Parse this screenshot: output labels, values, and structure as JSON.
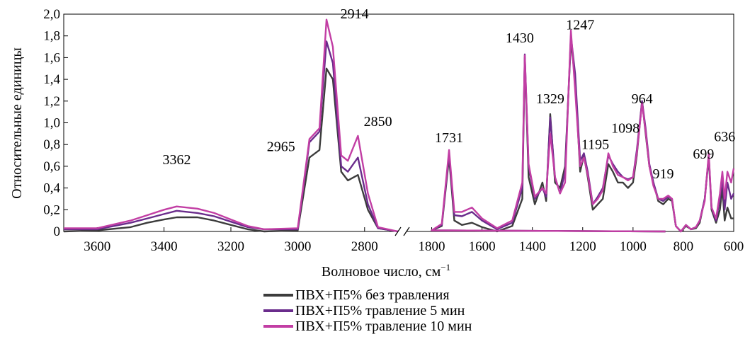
{
  "chart_data": {
    "type": "line",
    "title": "",
    "xlabel": "Волновое число, см",
    "xlabel_sup": "−1",
    "ylabel": "Относительные единицы",
    "x_reversed": true,
    "x_broken": true,
    "x_segments": [
      [
        3700,
        2700
      ],
      [
        1900,
        600
      ]
    ],
    "ylim": [
      0,
      2.0
    ],
    "y_ticks": [
      "0",
      "0,2",
      "0,4",
      "0,6",
      "0,8",
      "1,0",
      "1,2",
      "1,4",
      "1,6",
      "1,8",
      "2,0"
    ],
    "x_ticks": [
      {
        "value": 3600,
        "label": "3600"
      },
      {
        "value": 3400,
        "label": "3400"
      },
      {
        "value": 3200,
        "label": "3200"
      },
      {
        "value": 3000,
        "label": "3000"
      },
      {
        "value": 2800,
        "label": "2800"
      },
      {
        "value": 1800,
        "label": "1800"
      },
      {
        "value": 1600,
        "label": "1600"
      },
      {
        "value": 1400,
        "label": "1400"
      },
      {
        "value": 1200,
        "label": "1200"
      },
      {
        "value": 1000,
        "label": "1000"
      },
      {
        "value": 800,
        "label": "800"
      },
      {
        "value": 600,
        "label": "600"
      }
    ],
    "grid": false,
    "legend_position": "bottom-center",
    "annotations": [
      {
        "label": "3362",
        "x": 3362,
        "y": 0.62
      },
      {
        "label": "2965",
        "x": 3050,
        "y": 0.74
      },
      {
        "label": "2914",
        "x": 2830,
        "y": 1.96
      },
      {
        "label": "2850",
        "x": 2760,
        "y": 0.97
      },
      {
        "label": "1731",
        "x": 1731,
        "y": 0.82
      },
      {
        "label": "1430",
        "x": 1450,
        "y": 1.74
      },
      {
        "label": "1329",
        "x": 1329,
        "y": 1.18
      },
      {
        "label": "1247",
        "x": 1210,
        "y": 1.86
      },
      {
        "label": "1195",
        "x": 1150,
        "y": 0.76
      },
      {
        "label": "964",
        "x": 964,
        "y": 1.18
      },
      {
        "label": "1098",
        "x": 1030,
        "y": 0.91
      },
      {
        "label": "919",
        "x": 880,
        "y": 0.49
      },
      {
        "label": "699",
        "x": 720,
        "y": 0.67
      },
      {
        "label": "636",
        "x": 636,
        "y": 0.83
      }
    ],
    "series": [
      {
        "name": "ПВХ+П5% без травления",
        "color": "#3c3c3c",
        "segments": [
          [
            [
              3700,
              0
            ],
            [
              3600,
              0.01
            ],
            [
              3500,
              0.04
            ],
            [
              3450,
              0.08
            ],
            [
              3400,
              0.11
            ],
            [
              3362,
              0.13
            ],
            [
              3300,
              0.13
            ],
            [
              3250,
              0.1
            ],
            [
              3200,
              0.06
            ],
            [
              3150,
              0.02
            ],
            [
              3100,
              0
            ],
            [
              3000,
              0.01
            ],
            [
              2965,
              0.68
            ],
            [
              2935,
              0.75
            ],
            [
              2914,
              1.5
            ],
            [
              2895,
              1.4
            ],
            [
              2870,
              0.55
            ],
            [
              2850,
              0.47
            ],
            [
              2820,
              0.52
            ],
            [
              2790,
              0.2
            ],
            [
              2760,
              0.03
            ],
            [
              2700,
              0
            ]
          ],
          [
            [
              1900,
              0
            ],
            [
              1800,
              0.01
            ],
            [
              1760,
              0.05
            ],
            [
              1731,
              0.68
            ],
            [
              1710,
              0.1
            ],
            [
              1680,
              0.06
            ],
            [
              1640,
              0.08
            ],
            [
              1600,
              0.04
            ],
            [
              1540,
              0
            ],
            [
              1480,
              0.05
            ],
            [
              1440,
              0.3
            ],
            [
              1430,
              1.6
            ],
            [
              1415,
              0.5
            ],
            [
              1390,
              0.25
            ],
            [
              1360,
              0.45
            ],
            [
              1345,
              0.28
            ],
            [
              1329,
              1.08
            ],
            [
              1310,
              0.45
            ],
            [
              1290,
              0.4
            ],
            [
              1270,
              0.6
            ],
            [
              1247,
              1.75
            ],
            [
              1230,
              1.4
            ],
            [
              1210,
              0.55
            ],
            [
              1195,
              0.7
            ],
            [
              1180,
              0.5
            ],
            [
              1160,
              0.2
            ],
            [
              1140,
              0.25
            ],
            [
              1120,
              0.3
            ],
            [
              1098,
              0.62
            ],
            [
              1080,
              0.55
            ],
            [
              1060,
              0.45
            ],
            [
              1040,
              0.45
            ],
            [
              1020,
              0.4
            ],
            [
              1000,
              0.45
            ],
            [
              985,
              0.7
            ],
            [
              964,
              1.2
            ],
            [
              950,
              0.9
            ],
            [
              935,
              0.6
            ],
            [
              919,
              0.45
            ],
            [
              900,
              0.28
            ],
            [
              880,
              0.25
            ],
            [
              860,
              0.3
            ],
            [
              845,
              0.28
            ],
            [
              830,
              0.05
            ],
            [
              810,
              0
            ],
            [
              790,
              0.05
            ],
            [
              770,
              0.02
            ],
            [
              750,
              0.03
            ],
            [
              735,
              0.08
            ],
            [
              715,
              0.3
            ],
            [
              699,
              0.68
            ],
            [
              688,
              0.2
            ],
            [
              670,
              0.08
            ],
            [
              655,
              0.2
            ],
            [
              645,
              0.4
            ],
            [
              636,
              0.1
            ],
            [
              625,
              0.22
            ],
            [
              610,
              0.12
            ],
            [
              600,
              0.12
            ]
          ]
        ]
      },
      {
        "name": "ПВХ+П5% травление 5 мин",
        "color": "#6a2c8c",
        "segments": [
          [
            [
              3700,
              0.02
            ],
            [
              3600,
              0.02
            ],
            [
              3500,
              0.08
            ],
            [
              3450,
              0.12
            ],
            [
              3400,
              0.16
            ],
            [
              3362,
              0.19
            ],
            [
              3300,
              0.17
            ],
            [
              3250,
              0.14
            ],
            [
              3200,
              0.09
            ],
            [
              3150,
              0.04
            ],
            [
              3100,
              0.02
            ],
            [
              3000,
              0.02
            ],
            [
              2965,
              0.82
            ],
            [
              2935,
              0.92
            ],
            [
              2914,
              1.75
            ],
            [
              2895,
              1.55
            ],
            [
              2870,
              0.6
            ],
            [
              2850,
              0.55
            ],
            [
              2820,
              0.68
            ],
            [
              2790,
              0.25
            ],
            [
              2760,
              0.03
            ],
            [
              2700,
              0
            ]
          ],
          [
            [
              1900,
              0
            ],
            [
              1800,
              0.01
            ],
            [
              1760,
              0.06
            ],
            [
              1731,
              0.72
            ],
            [
              1710,
              0.15
            ],
            [
              1680,
              0.14
            ],
            [
              1640,
              0.18
            ],
            [
              1600,
              0.1
            ],
            [
              1540,
              0.02
            ],
            [
              1480,
              0.08
            ],
            [
              1440,
              0.4
            ],
            [
              1430,
              1.63
            ],
            [
              1415,
              0.6
            ],
            [
              1390,
              0.3
            ],
            [
              1360,
              0.4
            ],
            [
              1345,
              0.32
            ],
            [
              1329,
              1.05
            ],
            [
              1310,
              0.5
            ],
            [
              1290,
              0.35
            ],
            [
              1270,
              0.55
            ],
            [
              1247,
              1.8
            ],
            [
              1230,
              1.45
            ],
            [
              1210,
              0.65
            ],
            [
              1195,
              0.72
            ],
            [
              1180,
              0.55
            ],
            [
              1160,
              0.25
            ],
            [
              1140,
              0.32
            ],
            [
              1120,
              0.4
            ],
            [
              1098,
              0.7
            ],
            [
              1080,
              0.62
            ],
            [
              1060,
              0.55
            ],
            [
              1040,
              0.5
            ],
            [
              1020,
              0.48
            ],
            [
              1000,
              0.5
            ],
            [
              985,
              0.75
            ],
            [
              964,
              1.2
            ],
            [
              950,
              0.95
            ],
            [
              935,
              0.62
            ],
            [
              919,
              0.45
            ],
            [
              900,
              0.3
            ],
            [
              880,
              0.28
            ],
            [
              860,
              0.32
            ],
            [
              845,
              0.3
            ],
            [
              830,
              0.05
            ],
            [
              810,
              0
            ],
            [
              790,
              0.06
            ],
            [
              770,
              0.02
            ],
            [
              750,
              0.04
            ],
            [
              735,
              0.1
            ],
            [
              715,
              0.3
            ],
            [
              699,
              0.7
            ],
            [
              688,
              0.22
            ],
            [
              670,
              0.1
            ],
            [
              655,
              0.3
            ],
            [
              645,
              0.5
            ],
            [
              636,
              0.2
            ],
            [
              625,
              0.45
            ],
            [
              610,
              0.3
            ],
            [
              600,
              0.35
            ]
          ]
        ]
      },
      {
        "name": "ПВХ+П5% травление 10 мин",
        "color": "#c23ea4",
        "segments": [
          [
            [
              3700,
              0.03
            ],
            [
              3600,
              0.03
            ],
            [
              3500,
              0.1
            ],
            [
              3450,
              0.15
            ],
            [
              3400,
              0.2
            ],
            [
              3362,
              0.23
            ],
            [
              3300,
              0.21
            ],
            [
              3250,
              0.17
            ],
            [
              3200,
              0.11
            ],
            [
              3150,
              0.05
            ],
            [
              3100,
              0.02
            ],
            [
              3000,
              0.03
            ],
            [
              2965,
              0.85
            ],
            [
              2935,
              0.95
            ],
            [
              2914,
              1.95
            ],
            [
              2895,
              1.7
            ],
            [
              2870,
              0.7
            ],
            [
              2850,
              0.65
            ],
            [
              2820,
              0.88
            ],
            [
              2790,
              0.35
            ],
            [
              2760,
              0.04
            ],
            [
              2700,
              0
            ]
          ],
          [
            [
              1900,
              0
            ],
            [
              1800,
              0.01
            ],
            [
              1760,
              0.07
            ],
            [
              1731,
              0.75
            ],
            [
              1710,
              0.18
            ],
            [
              1680,
              0.18
            ],
            [
              1640,
              0.22
            ],
            [
              1600,
              0.12
            ],
            [
              1540,
              0.03
            ],
            [
              1480,
              0.1
            ],
            [
              1440,
              0.45
            ],
            [
              1430,
              1.62
            ],
            [
              1415,
              0.62
            ],
            [
              1390,
              0.32
            ],
            [
              1360,
              0.4
            ],
            [
              1345,
              0.35
            ],
            [
              1329,
              0.9
            ],
            [
              1310,
              0.5
            ],
            [
              1290,
              0.35
            ],
            [
              1270,
              0.45
            ],
            [
              1247,
              1.85
            ],
            [
              1230,
              1.3
            ],
            [
              1210,
              0.6
            ],
            [
              1195,
              0.68
            ],
            [
              1180,
              0.52
            ],
            [
              1160,
              0.25
            ],
            [
              1140,
              0.3
            ],
            [
              1120,
              0.38
            ],
            [
              1098,
              0.72
            ],
            [
              1080,
              0.6
            ],
            [
              1060,
              0.52
            ],
            [
              1040,
              0.5
            ],
            [
              1020,
              0.47
            ],
            [
              1000,
              0.5
            ],
            [
              985,
              0.72
            ],
            [
              964,
              1.18
            ],
            [
              950,
              0.92
            ],
            [
              935,
              0.6
            ],
            [
              919,
              0.42
            ],
            [
              900,
              0.3
            ],
            [
              880,
              0.3
            ],
            [
              860,
              0.33
            ],
            [
              845,
              0.3
            ],
            [
              830,
              0.05
            ],
            [
              810,
              0
            ],
            [
              790,
              0.06
            ],
            [
              770,
              0.02
            ],
            [
              750,
              0.04
            ],
            [
              735,
              0.1
            ],
            [
              715,
              0.28
            ],
            [
              699,
              0.72
            ],
            [
              688,
              0.22
            ],
            [
              670,
              0.12
            ],
            [
              655,
              0.35
            ],
            [
              645,
              0.55
            ],
            [
              636,
              0.3
            ],
            [
              625,
              0.55
            ],
            [
              610,
              0.45
            ],
            [
              600,
              0.58
            ]
          ]
        ]
      }
    ]
  }
}
